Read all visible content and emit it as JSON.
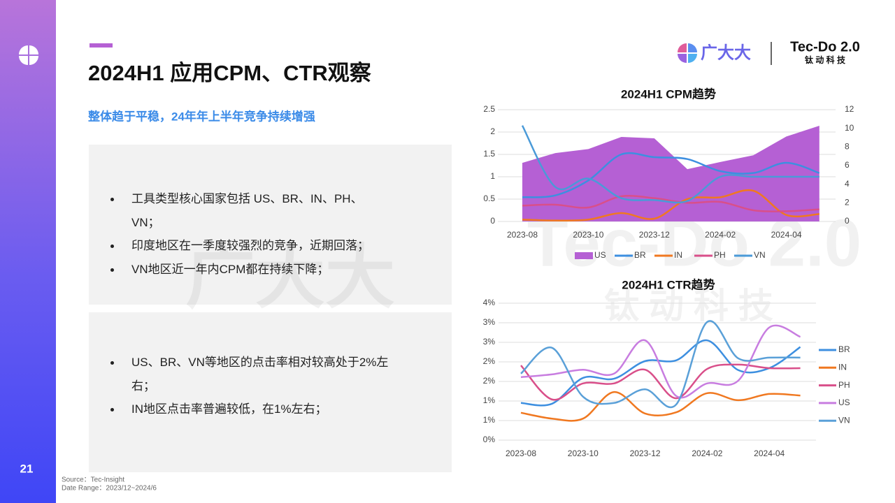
{
  "sidebar": {
    "page_number": "21"
  },
  "header": {
    "title": "2024H1 应用CPM、CTR观察",
    "subtitle": "整体趋于平稳，24年年上半年竞争持续增强",
    "brand": "广大大",
    "logo_name": "Tec-Do 2.0",
    "logo_sub": "钛 动 科 技"
  },
  "boxes": [
    {
      "bullets": [
        "工具类型核心国家包括 US、BR、IN、PH、VN；",
        "印度地区在一季度较强烈的竞争，近期回落；",
        "VN地区近一年内CPM都在持续下降；"
      ]
    },
    {
      "bullets": [
        "US、BR、VN等地区的点击率相对较高处于2%左右；",
        "IN地区点击率普遍较低，在1%左右；"
      ]
    }
  ],
  "footer": {
    "source": "Source：Tec-Insight",
    "date_range": "Date Range：2023/12~2024/6"
  },
  "chart_data": [
    {
      "type": "line",
      "title": "2024H1 CPM趋势",
      "categories": [
        "2023-08",
        null,
        "2023-10",
        null,
        "2023-12",
        null,
        "2024-02",
        null,
        "2024-04",
        null
      ],
      "ylim": [
        0,
        2.5
      ],
      "yticks": [
        0,
        0.5,
        1,
        1.5,
        2,
        2.5
      ],
      "y2lim": [
        0,
        12
      ],
      "y2ticks": [
        0,
        2,
        4,
        6,
        8,
        10,
        12
      ],
      "grid": true,
      "legend": "bottom",
      "series": [
        {
          "name": "US",
          "type": "area",
          "color": "#b560d4",
          "values": [
            1.31,
            1.53,
            1.62,
            1.89,
            1.86,
            1.17,
            1.33,
            1.48,
            1.9,
            2.14
          ]
        },
        {
          "name": "BR",
          "axis": "y2",
          "color": "#3d8fe0",
          "values": [
            2.6,
            2.8,
            4.4,
            7.2,
            6.9,
            6.7,
            5.4,
            5.2,
            6.3,
            5.2
          ]
        },
        {
          "name": "IN",
          "axis": "y2",
          "color": "#f07820",
          "values": [
            0.2,
            0.1,
            0.2,
            0.9,
            0.3,
            2.4,
            2.6,
            3.3,
            0.7,
            0.8
          ]
        },
        {
          "name": "PH",
          "axis": "y2",
          "color": "#d94f8a",
          "values": [
            1.7,
            1.8,
            1.5,
            2.7,
            2.5,
            2.0,
            2.1,
            1.2,
            1.1,
            1.3
          ]
        },
        {
          "name": "VN",
          "axis": "y2",
          "color": "#4a9ad8",
          "values": [
            10.3,
            3.7,
            4.6,
            2.5,
            2.3,
            2.2,
            4.8,
            4.8,
            4.8,
            4.8
          ]
        }
      ]
    },
    {
      "type": "line",
      "title": "2024H1 CTR趋势",
      "categories": [
        "2023-08",
        null,
        "2023-10",
        null,
        "2023-12",
        null,
        "2024-02",
        null,
        "2024-04",
        null
      ],
      "ylim": [
        0,
        3.5
      ],
      "yticks": [
        {
          "value": 0,
          "label": "0%"
        },
        {
          "value": 0.5,
          "label": "1%"
        },
        {
          "value": 1,
          "label": "1%"
        },
        {
          "value": 1.5,
          "label": "2%"
        },
        {
          "value": 2,
          "label": "2%"
        },
        {
          "value": 2.5,
          "label": "3%"
        },
        {
          "value": 3,
          "label": "3%"
        },
        {
          "value": 3.5,
          "label": "4%"
        }
      ],
      "grid": true,
      "legend": "right",
      "series": [
        {
          "name": "BR",
          "color": "#3d8fe0",
          "values": [
            0.95,
            0.93,
            1.59,
            1.57,
            2.02,
            2.04,
            2.55,
            1.79,
            1.84,
            2.38
          ]
        },
        {
          "name": "IN",
          "color": "#f07820",
          "values": [
            0.7,
            0.55,
            0.55,
            1.23,
            0.68,
            0.71,
            1.2,
            1.02,
            1.18,
            1.14
          ]
        },
        {
          "name": "PH",
          "color": "#d94f8a",
          "values": [
            1.91,
            1.04,
            1.45,
            1.45,
            1.8,
            1.07,
            1.82,
            1.93,
            1.84,
            1.84
          ]
        },
        {
          "name": "US",
          "color": "#c87de0",
          "values": [
            1.61,
            1.68,
            1.8,
            1.7,
            2.55,
            1.13,
            1.45,
            1.52,
            2.88,
            2.64
          ]
        },
        {
          "name": "VN",
          "color": "#5aa0d8",
          "values": [
            1.7,
            2.36,
            1.11,
            0.95,
            1.3,
            0.91,
            3.02,
            2.09,
            2.11,
            2.11
          ]
        }
      ]
    }
  ]
}
